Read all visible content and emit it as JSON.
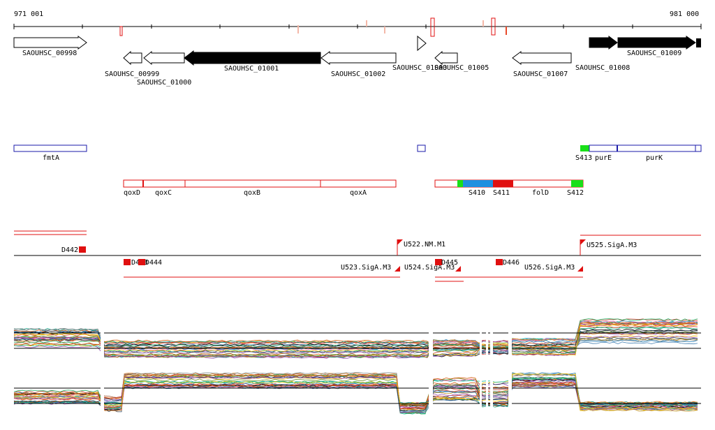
{
  "axis": {
    "start_label": "971 001",
    "end_label": "981 000"
  },
  "genes": [
    {
      "label": "SAOUHSC_00998",
      "style": "open",
      "dir": "right"
    },
    {
      "label": "SAOUHSC_00999",
      "style": "open",
      "dir": "left"
    },
    {
      "label": "SAOUHSC_01000",
      "style": "open",
      "dir": "left"
    },
    {
      "label": "SAOUHSC_01001",
      "style": "filled",
      "dir": "left"
    },
    {
      "label": "SAOUHSC_01002",
      "style": "open",
      "dir": "left"
    },
    {
      "label": "SAOUHSC_01003",
      "style": "open",
      "dir": "right"
    },
    {
      "label": "SAOUHSC_01005",
      "style": "open",
      "dir": "left"
    },
    {
      "label": "SAOUHSC_01007",
      "style": "open",
      "dir": "left"
    },
    {
      "label": "SAOUHSC_01008",
      "style": "filled",
      "dir": "right"
    },
    {
      "label": "SAOUHSC_01009",
      "style": "filled",
      "dir": "right"
    }
  ],
  "annotations_blue": [
    "fmtA",
    "purE",
    "purK",
    "S413"
  ],
  "annotations_red": [
    "qoxD",
    "qoxC",
    "qoxB",
    "qoxA",
    "S410",
    "S411",
    "folD",
    "S412"
  ],
  "transcripts": [
    "D442",
    "D443",
    "D444",
    "U522.NM.M1",
    "U523.SigA.M3",
    "U524.SigA.M3",
    "D445",
    "D446",
    "U525.SigA.M3",
    "U526.SigA.M3"
  ],
  "colors": {
    "gene_filled": "#000000",
    "blue": "#1a1aa8",
    "red": "#e01010",
    "green": "#19e019",
    "cyan": "#1e90e0"
  }
}
